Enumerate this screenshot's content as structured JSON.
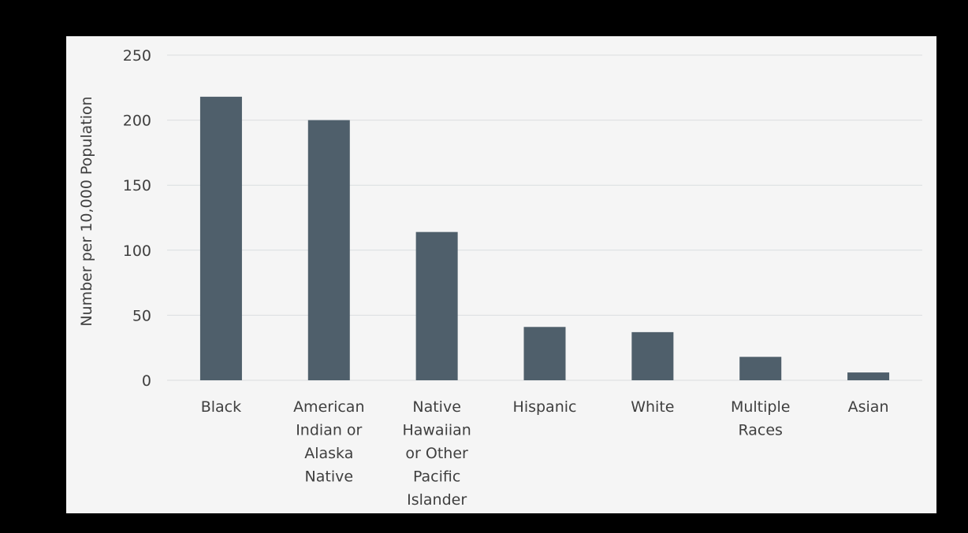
{
  "chart_data": {
    "type": "bar",
    "categories": [
      [
        "Black"
      ],
      [
        "American",
        "Indian or",
        "Alaska",
        "Native"
      ],
      [
        "Native",
        "Hawaiian",
        "or Other",
        "Pacific",
        "Islander"
      ],
      [
        "Hispanic"
      ],
      [
        "White"
      ],
      [
        "Multiple",
        "Races"
      ],
      [
        "Asian"
      ]
    ],
    "values": [
      218,
      200,
      114,
      41,
      37,
      18,
      6
    ],
    "ylabel": "Number per 10,000 Population",
    "xlabel": "",
    "title": "",
    "ylim": [
      0,
      250
    ],
    "yticks": [
      0,
      50,
      100,
      150,
      200,
      250
    ],
    "grid": true,
    "legend": "none",
    "colors": {
      "bar": "#4f5f6b",
      "grid": "#dadde0",
      "panel_background": "#f5f5f5",
      "page_background": "#000000",
      "text": "#3f3f3f"
    }
  }
}
